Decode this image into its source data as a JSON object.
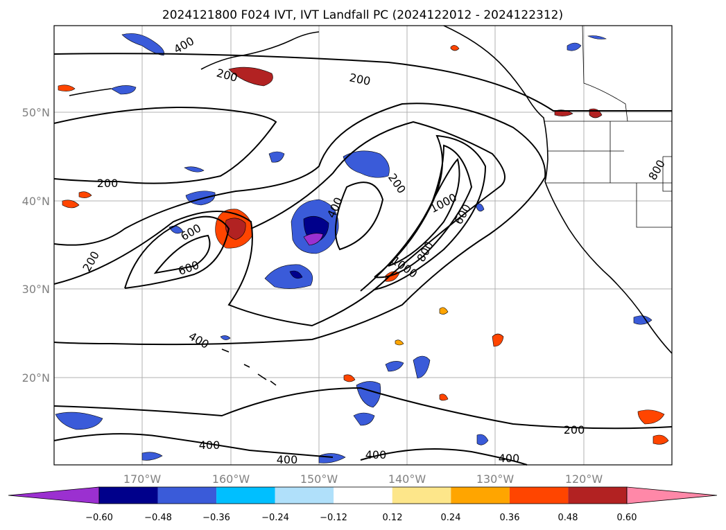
{
  "map": {
    "title": "2024121800 F024 IVT, IVT Landfall PC (2024122012 - 2024122312)",
    "lat_labels": [
      "50°N",
      "40°N",
      "30°N",
      "20°N"
    ],
    "lon_labels": [
      "170°W",
      "160°W",
      "150°W",
      "140°W",
      "130°W",
      "120°W"
    ],
    "contour_labels": [
      "400",
      "200",
      "200",
      "200",
      "400",
      "200",
      "600",
      "1000",
      "600",
      "800",
      "1000",
      "600",
      "200",
      "800",
      "400",
      "200",
      "400",
      "400",
      "400",
      "400"
    ]
  },
  "colorbar": {
    "ticks": [
      "−0.60",
      "−0.48",
      "−0.36",
      "−0.24",
      "−0.12",
      "0.12",
      "0.24",
      "0.36",
      "0.48",
      "0.60"
    ],
    "colors": [
      "#9b30d0",
      "#00008b",
      "#3a5bd9",
      "#00bfff",
      "#b0e0fa",
      "#ffffff",
      "#fde68a",
      "#ffa500",
      "#ff4500",
      "#b22222",
      "#ff88a8"
    ]
  }
}
